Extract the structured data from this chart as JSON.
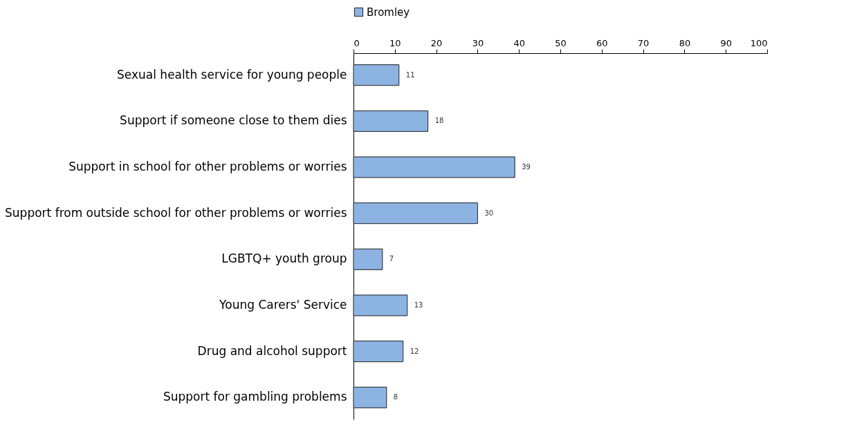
{
  "chart_data": {
    "type": "bar",
    "orientation": "horizontal",
    "categories": [
      "Sexual health service for young people",
      "Support if someone close to them dies",
      "Support in school for other problems or worries",
      "Support from outside school for other problems or worries",
      "LGBTQ+ youth group",
      "Young Carers' Service",
      "Drug and alcohol support",
      "Support for gambling problems"
    ],
    "series": [
      {
        "name": "Bromley",
        "color": "#8db3e2",
        "values": [
          11,
          18,
          39,
          30,
          7,
          13,
          12,
          8
        ]
      }
    ],
    "xlim": [
      0,
      100
    ],
    "xticks": [
      0,
      10,
      20,
      30,
      40,
      50,
      60,
      70,
      80,
      90,
      100
    ],
    "data_labels": true,
    "legend": "top",
    "grid": false
  }
}
